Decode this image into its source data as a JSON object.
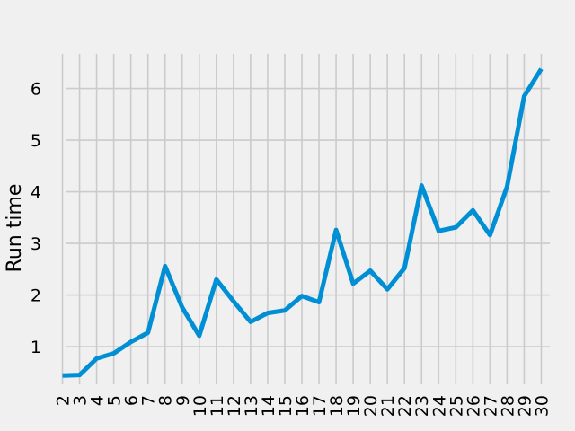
{
  "chart_data": {
    "type": "line",
    "title": "",
    "xlabel": "",
    "ylabel": "Run time",
    "x": [
      2,
      3,
      4,
      5,
      6,
      7,
      8,
      9,
      10,
      11,
      12,
      13,
      14,
      15,
      16,
      17,
      18,
      19,
      20,
      21,
      22,
      23,
      24,
      25,
      26,
      27,
      28,
      29,
      30
    ],
    "series": [
      {
        "values": [
          0.44,
          0.45,
          0.77,
          0.87,
          1.09,
          1.27,
          2.56,
          1.76,
          1.21,
          2.3,
          1.88,
          1.48,
          1.65,
          1.7,
          1.98,
          1.86,
          3.26,
          2.22,
          2.47,
          2.11,
          2.52,
          4.12,
          3.24,
          3.31,
          3.64,
          3.16,
          4.1,
          5.85,
          6.38
        ],
        "color": "#008fd5"
      }
    ],
    "yticks": [
      1,
      2,
      3,
      4,
      5,
      6
    ],
    "ylim": [
      0.27,
      6.67
    ],
    "xlim": [
      1.5,
      30.5
    ],
    "grid": true,
    "legend": "none",
    "style": "fivethirtyeight"
  }
}
